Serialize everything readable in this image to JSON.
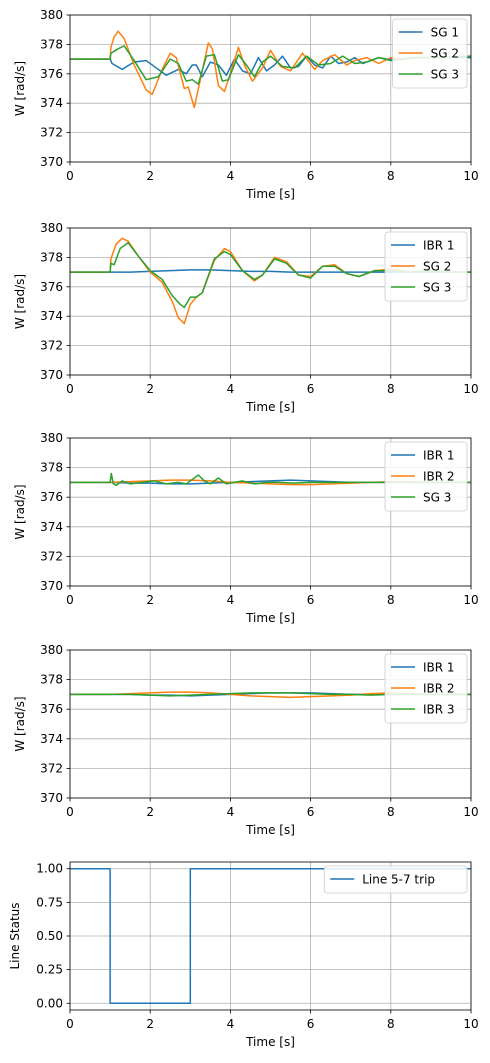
{
  "chart_data": [
    {
      "type": "line",
      "xlabel": "Time [s]",
      "ylabel": "W [rad/s]",
      "xlim": [
        0,
        10
      ],
      "ylim": [
        370,
        380
      ],
      "xticks": [
        "0",
        "2",
        "4",
        "6",
        "8",
        "10"
      ],
      "yticks": [
        "370",
        "372",
        "374",
        "376",
        "378",
        "380"
      ],
      "grid": true,
      "legend": "top-right",
      "series": [
        {
          "name": "SG 1",
          "color": "#1f77b4",
          "x": [
            0,
            1.0,
            1.05,
            1.3,
            1.6,
            1.9,
            2.1,
            2.4,
            2.7,
            2.9,
            3.05,
            3.15,
            3.3,
            3.5,
            3.7,
            3.9,
            4.1,
            4.3,
            4.5,
            4.7,
            4.9,
            5.1,
            5.3,
            5.5,
            5.7,
            5.9,
            6.1,
            6.3,
            6.5,
            6.7,
            6.9,
            7.1,
            7.3,
            7.5,
            7.7,
            7.9,
            8.2,
            8.6,
            9.0,
            9.5,
            10
          ],
          "y": [
            377.0,
            377.0,
            376.7,
            376.3,
            376.8,
            376.9,
            376.5,
            375.9,
            376.3,
            376.0,
            376.6,
            376.6,
            375.8,
            376.8,
            376.6,
            375.9,
            377.0,
            376.2,
            376.0,
            377.1,
            376.2,
            376.6,
            377.2,
            376.4,
            376.5,
            377.2,
            376.6,
            376.4,
            377.2,
            376.7,
            376.8,
            377.1,
            376.7,
            376.9,
            377.1,
            377.0,
            377.0,
            377.1,
            377.1,
            377.1,
            377.1
          ]
        },
        {
          "name": "SG 2",
          "color": "#ff7f0e",
          "x": [
            0,
            1.0,
            1.02,
            1.1,
            1.2,
            1.35,
            1.6,
            1.9,
            2.05,
            2.3,
            2.5,
            2.65,
            2.85,
            2.95,
            3.1,
            3.25,
            3.45,
            3.55,
            3.7,
            3.85,
            3.95,
            4.2,
            4.35,
            4.55,
            4.8,
            5.0,
            5.25,
            5.5,
            5.8,
            6.1,
            6.3,
            6.6,
            6.9,
            7.1,
            7.4,
            7.7,
            8.0,
            8.3,
            8.7,
            9.2,
            10
          ],
          "y": [
            377.0,
            377.0,
            377.8,
            378.5,
            378.9,
            378.4,
            376.6,
            374.9,
            374.6,
            376.3,
            377.4,
            377.1,
            375.0,
            375.1,
            373.7,
            375.6,
            378.1,
            377.7,
            375.2,
            374.8,
            375.6,
            377.8,
            376.6,
            375.5,
            376.4,
            377.6,
            376.5,
            376.2,
            377.4,
            376.3,
            376.9,
            377.3,
            376.6,
            376.9,
            377.1,
            376.7,
            377.1,
            377.0,
            377.1,
            377.1,
            377.2
          ]
        },
        {
          "name": "SG 3",
          "color": "#2ca02c",
          "x": [
            0,
            1.0,
            1.02,
            1.2,
            1.35,
            1.6,
            1.9,
            2.2,
            2.5,
            2.7,
            2.9,
            3.05,
            3.2,
            3.4,
            3.6,
            3.8,
            3.95,
            4.2,
            4.4,
            4.6,
            4.8,
            5.0,
            5.3,
            5.6,
            5.9,
            6.2,
            6.5,
            6.8,
            7.1,
            7.4,
            7.7,
            8.0,
            8.3,
            8.7,
            9.2,
            10
          ],
          "y": [
            377.0,
            377.0,
            377.4,
            377.7,
            377.9,
            376.9,
            375.6,
            375.8,
            377.0,
            376.7,
            375.5,
            375.6,
            375.3,
            377.2,
            377.3,
            375.5,
            375.6,
            377.3,
            376.6,
            375.8,
            376.8,
            377.2,
            376.5,
            376.4,
            377.2,
            376.6,
            376.7,
            377.2,
            376.7,
            376.8,
            377.1,
            376.9,
            377.0,
            377.1,
            377.1,
            377.2
          ]
        }
      ]
    },
    {
      "type": "line",
      "xlabel": "Time [s]",
      "ylabel": "W [rad/s]",
      "xlim": [
        0,
        10
      ],
      "ylim": [
        370,
        380
      ],
      "xticks": [
        "0",
        "2",
        "4",
        "6",
        "8",
        "10"
      ],
      "yticks": [
        "370",
        "372",
        "374",
        "376",
        "378",
        "380"
      ],
      "grid": true,
      "legend": "top-right",
      "series": [
        {
          "name": "IBR 1",
          "color": "#1f77b4",
          "x": [
            0,
            1.0,
            1.5,
            2.0,
            2.5,
            3.0,
            3.5,
            4.0,
            4.5,
            5.0,
            5.5,
            6.0,
            7.0,
            8.0,
            9.0,
            10
          ],
          "y": [
            377.0,
            377.0,
            377.0,
            377.05,
            377.1,
            377.15,
            377.15,
            377.1,
            377.05,
            377.05,
            377.0,
            377.0,
            377.0,
            377.0,
            377.0,
            377.0
          ]
        },
        {
          "name": "SG 2",
          "color": "#ff7f0e",
          "x": [
            0,
            1.0,
            1.02,
            1.15,
            1.3,
            1.45,
            1.7,
            2.0,
            2.3,
            2.55,
            2.7,
            2.85,
            3.0,
            3.15,
            3.3,
            3.6,
            3.85,
            4.0,
            4.3,
            4.6,
            4.8,
            5.1,
            5.4,
            5.7,
            6.0,
            6.3,
            6.6,
            6.9,
            7.2,
            7.6,
            8.0,
            8.5,
            9.0,
            9.5,
            10
          ],
          "y": [
            377.0,
            377.0,
            377.9,
            378.9,
            379.3,
            379.1,
            378.1,
            377.0,
            376.3,
            375.0,
            373.9,
            373.5,
            374.8,
            375.3,
            375.6,
            377.8,
            378.6,
            378.4,
            377.1,
            376.4,
            376.8,
            378.0,
            377.7,
            376.8,
            376.7,
            377.4,
            377.5,
            376.9,
            376.7,
            377.1,
            377.2,
            377.0,
            377.1,
            377.0,
            377.0
          ]
        },
        {
          "name": "SG 3",
          "color": "#2ca02c",
          "x": [
            0,
            1.0,
            1.02,
            1.1,
            1.25,
            1.45,
            1.7,
            2.0,
            2.3,
            2.55,
            2.75,
            2.85,
            3.0,
            3.15,
            3.3,
            3.6,
            3.85,
            4.0,
            4.3,
            4.6,
            4.8,
            5.1,
            5.4,
            5.7,
            6.0,
            6.3,
            6.6,
            6.9,
            7.2,
            7.6,
            8.0,
            8.5,
            9.0,
            9.5,
            10
          ],
          "y": [
            377.0,
            377.0,
            377.6,
            377.5,
            378.6,
            379.0,
            378.1,
            377.1,
            376.5,
            375.4,
            374.8,
            374.6,
            375.3,
            375.3,
            375.6,
            377.9,
            378.4,
            378.2,
            377.1,
            376.5,
            376.8,
            377.9,
            377.6,
            376.8,
            376.6,
            377.4,
            377.4,
            376.9,
            376.7,
            377.1,
            377.1,
            377.0,
            377.1,
            377.0,
            377.0
          ]
        }
      ]
    },
    {
      "type": "line",
      "xlabel": "Time [s]",
      "ylabel": "W [rad/s]",
      "xlim": [
        0,
        10
      ],
      "ylim": [
        370,
        380
      ],
      "xticks": [
        "0",
        "2",
        "4",
        "6",
        "8",
        "10"
      ],
      "yticks": [
        "370",
        "372",
        "374",
        "376",
        "378",
        "380"
      ],
      "grid": true,
      "legend": "top-right",
      "series": [
        {
          "name": "IBR 1",
          "color": "#1f77b4",
          "x": [
            0,
            1.0,
            1.5,
            2.0,
            2.5,
            3.0,
            3.5,
            4.0,
            4.5,
            5.0,
            5.5,
            6.0,
            6.5,
            7.0,
            7.5,
            8.0,
            9.0,
            10
          ],
          "y": [
            377.0,
            377.0,
            376.95,
            376.95,
            376.9,
            376.9,
            376.95,
            377.0,
            377.05,
            377.1,
            377.15,
            377.1,
            377.05,
            377.0,
            377.0,
            377.0,
            377.0,
            377.0
          ]
        },
        {
          "name": "IBR 2",
          "color": "#ff7f0e",
          "x": [
            0,
            1.0,
            1.5,
            2.0,
            2.5,
            3.0,
            3.5,
            4.0,
            4.5,
            5.0,
            5.5,
            6.0,
            6.5,
            7.0,
            7.5,
            8.0,
            8.5,
            9.0,
            10
          ],
          "y": [
            377.0,
            377.0,
            377.05,
            377.1,
            377.15,
            377.15,
            377.1,
            377.0,
            376.95,
            376.9,
            376.85,
            376.85,
            376.9,
            376.95,
            377.0,
            377.05,
            377.05,
            377.0,
            377.0
          ]
        },
        {
          "name": "SG 3",
          "color": "#2ca02c",
          "x": [
            0,
            1.0,
            1.03,
            1.08,
            1.15,
            1.3,
            1.5,
            1.8,
            2.1,
            2.4,
            2.7,
            2.9,
            3.05,
            3.2,
            3.35,
            3.5,
            3.7,
            3.9,
            4.1,
            4.3,
            4.6,
            4.9,
            5.2,
            5.6,
            6.0,
            6.5,
            7.0,
            7.5,
            8.0,
            9.0,
            10
          ],
          "y": [
            377.0,
            377.0,
            377.6,
            376.9,
            376.8,
            377.1,
            376.9,
            377.0,
            377.1,
            376.9,
            377.0,
            376.9,
            377.2,
            377.5,
            377.1,
            376.9,
            377.3,
            376.9,
            377.0,
            377.1,
            376.9,
            377.0,
            377.0,
            376.95,
            377.0,
            377.0,
            377.0,
            377.0,
            377.0,
            377.0,
            377.0
          ]
        }
      ]
    },
    {
      "type": "line",
      "xlabel": "Time [s]",
      "ylabel": "W [rad/s]",
      "xlim": [
        0,
        10
      ],
      "ylim": [
        370,
        380
      ],
      "xticks": [
        "0",
        "2",
        "4",
        "6",
        "8",
        "10"
      ],
      "yticks": [
        "370",
        "372",
        "374",
        "376",
        "378",
        "380"
      ],
      "grid": true,
      "legend": "top-right",
      "series": [
        {
          "name": "IBR 1",
          "color": "#1f77b4",
          "x": [
            0,
            1.0,
            1.5,
            2.0,
            2.5,
            3.0,
            3.5,
            4.0,
            4.5,
            5.0,
            5.5,
            6.0,
            6.5,
            7.0,
            7.5,
            8.0,
            9.0,
            10
          ],
          "y": [
            377.0,
            377.0,
            377.0,
            376.95,
            376.95,
            376.9,
            376.95,
            377.0,
            377.05,
            377.1,
            377.1,
            377.1,
            377.05,
            377.0,
            377.0,
            377.0,
            377.0,
            377.0
          ]
        },
        {
          "name": "IBR 2",
          "color": "#ff7f0e",
          "x": [
            0,
            1.0,
            1.5,
            2.0,
            2.5,
            3.0,
            3.5,
            4.0,
            4.5,
            5.0,
            5.5,
            6.0,
            6.5,
            7.0,
            7.5,
            8.0,
            8.5,
            9.0,
            10
          ],
          "y": [
            377.0,
            377.0,
            377.05,
            377.1,
            377.15,
            377.15,
            377.1,
            377.0,
            376.9,
            376.85,
            376.8,
            376.85,
            376.9,
            376.95,
            377.05,
            377.1,
            377.05,
            377.0,
            377.0
          ]
        },
        {
          "name": "IBR 3",
          "color": "#2ca02c",
          "x": [
            0,
            1.0,
            1.5,
            2.0,
            2.5,
            3.0,
            3.5,
            4.0,
            4.5,
            5.0,
            5.5,
            6.0,
            6.5,
            7.0,
            7.5,
            8.0,
            9.0,
            10
          ],
          "y": [
            377.0,
            377.0,
            377.0,
            376.95,
            376.9,
            376.95,
            377.0,
            377.05,
            377.1,
            377.1,
            377.1,
            377.05,
            377.0,
            377.0,
            376.95,
            377.0,
            377.0,
            377.0
          ]
        }
      ]
    },
    {
      "type": "line",
      "xlabel": "Time [s]",
      "ylabel": "Line Status",
      "xlim": [
        0,
        10
      ],
      "ylim": [
        -0.05,
        1.05
      ],
      "xticks": [
        "0",
        "2",
        "4",
        "6",
        "8",
        "10"
      ],
      "yticks": [
        "0.00",
        "0.25",
        "0.50",
        "0.75",
        "1.00"
      ],
      "ytick_values": [
        0,
        0.25,
        0.5,
        0.75,
        1.0
      ],
      "grid": true,
      "legend": "top-right",
      "series": [
        {
          "name": "Line 5-7 trip",
          "color": "#1f77b4",
          "x": [
            0,
            1.0,
            1.0,
            3.0,
            3.0,
            10
          ],
          "y": [
            1,
            1,
            0,
            0,
            1,
            1
          ]
        }
      ]
    }
  ]
}
